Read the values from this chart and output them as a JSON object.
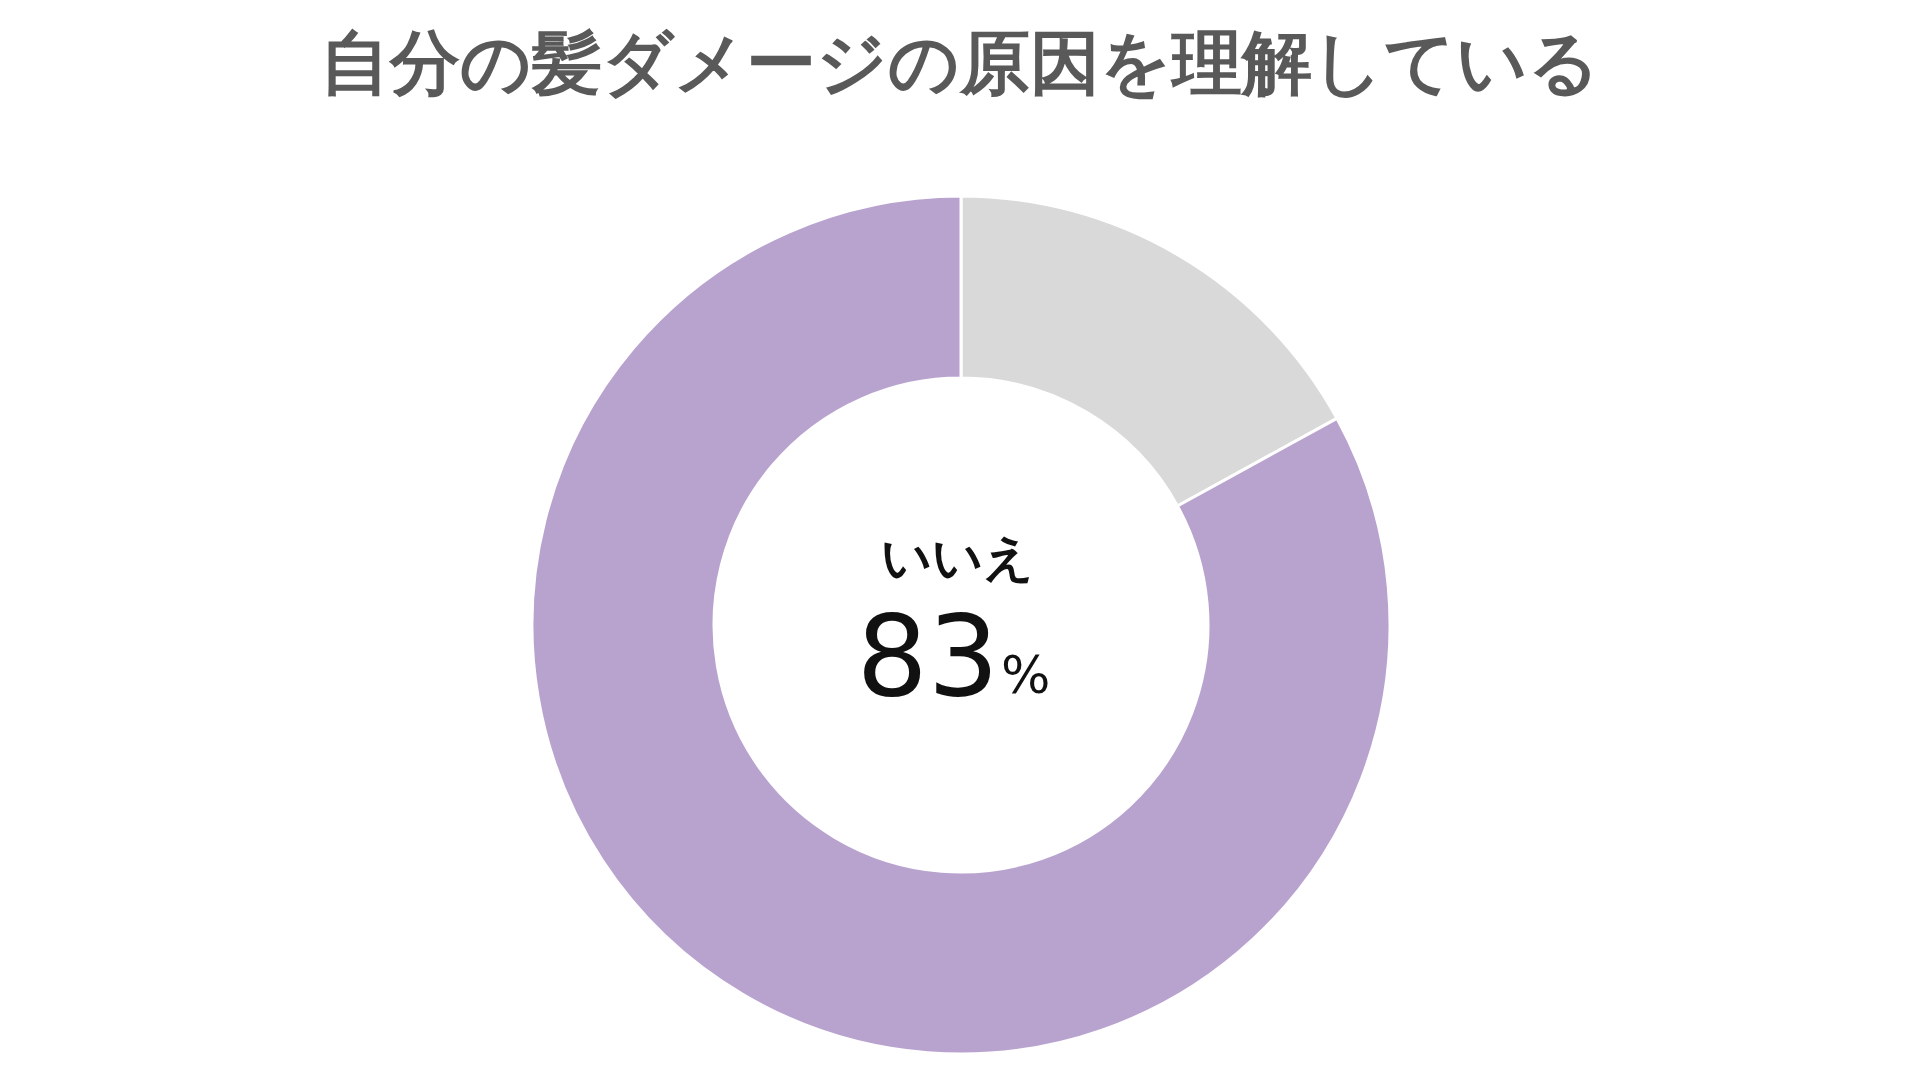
{
  "chart_data": {
    "type": "donut",
    "title": "自分の髪ダメージの原因を理解している",
    "categories": [
      null,
      "いいえ"
    ],
    "values": [
      17,
      83
    ],
    "colors": [
      "#d9d9d9",
      "#b8a3cf"
    ],
    "value_labels": [
      null,
      "83%"
    ]
  }
}
